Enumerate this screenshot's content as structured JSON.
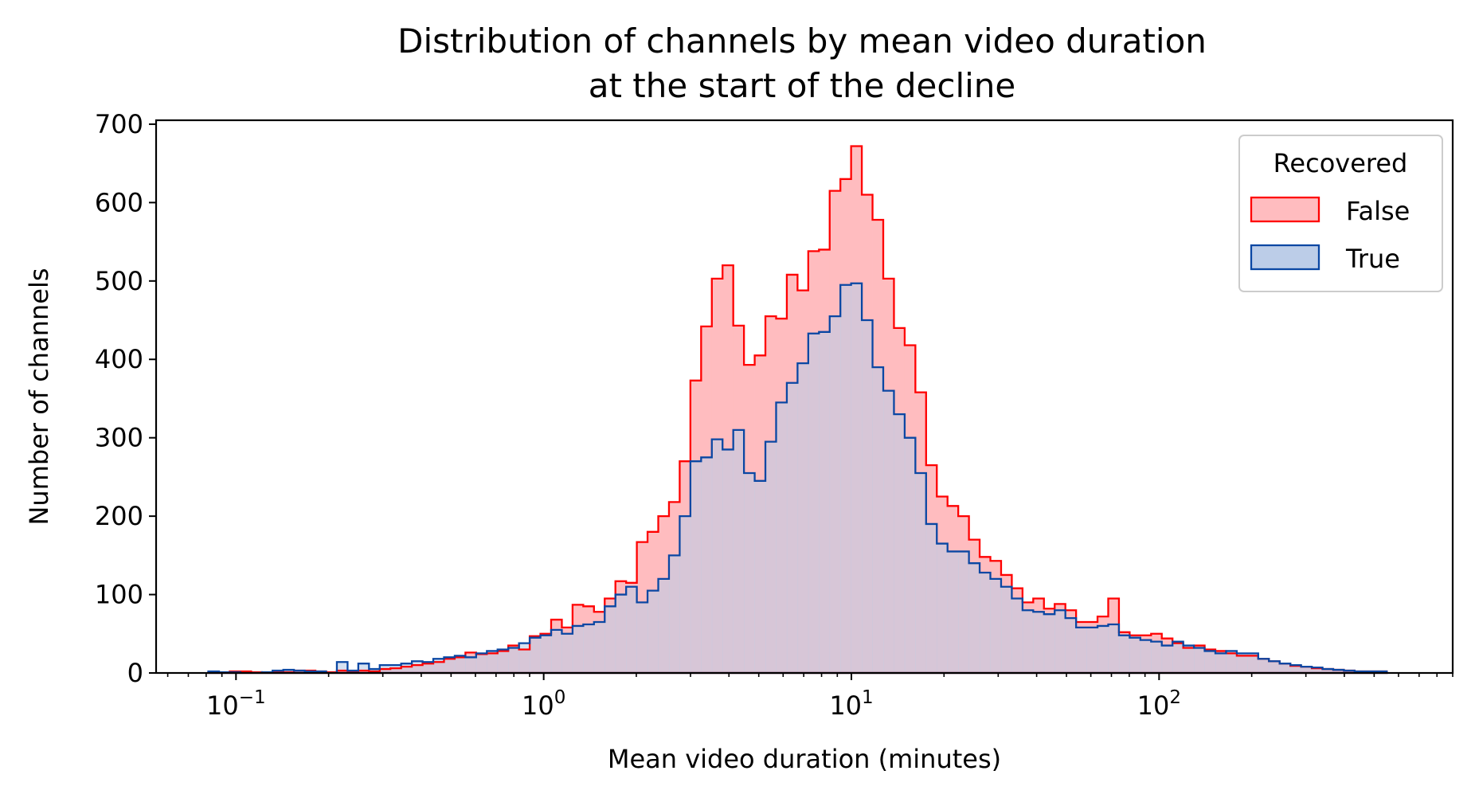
{
  "chart_data": {
    "type": "histogram",
    "title": [
      "Distribution of channels by mean video duration",
      "at the start of the decline"
    ],
    "xlabel": "Mean video duration (minutes)",
    "ylabel": "Number of channels",
    "x_scale": "log",
    "xlim": [
      0.055,
      900
    ],
    "ylim": [
      0,
      705
    ],
    "y_ticks": [
      0,
      100,
      200,
      300,
      400,
      500,
      600,
      700
    ],
    "y_tick_labels": [
      "0",
      "100",
      "200",
      "300",
      "400",
      "500",
      "600",
      "700"
    ],
    "x_ticks": [
      0.1,
      1,
      10,
      100
    ],
    "x_tick_labels": [
      {
        "base": "10",
        "exp": "−1"
      },
      {
        "base": "10",
        "exp": "0"
      },
      {
        "base": "10",
        "exp": "1"
      },
      {
        "base": "10",
        "exp": "2"
      }
    ],
    "grid": false,
    "legend": {
      "title": "Recovered",
      "placement": "top-right"
    },
    "bins": {
      "log10_start": -1.09,
      "log10_end": 2.74,
      "count": 110
    },
    "series": [
      {
        "name": "False",
        "stroke": "#ff0000",
        "fill": "#ffbcbf",
        "values": [
          1,
          0,
          2,
          2,
          1,
          0,
          2,
          1,
          3,
          3,
          2,
          1,
          3,
          2,
          3,
          2,
          5,
          6,
          8,
          10,
          12,
          14,
          18,
          20,
          26,
          24,
          25,
          28,
          35,
          30,
          47,
          50,
          68,
          58,
          87,
          85,
          78,
          95,
          117,
          115,
          167,
          180,
          200,
          218,
          270,
          373,
          442,
          503,
          520,
          443,
          393,
          405,
          455,
          452,
          508,
          488,
          538,
          540,
          615,
          630,
          672,
          610,
          578,
          503,
          440,
          418,
          358,
          265,
          225,
          213,
          200,
          170,
          148,
          143,
          125,
          108,
          90,
          95,
          82,
          88,
          80,
          65,
          65,
          72,
          95,
          52,
          48,
          48,
          50,
          44,
          38,
          32,
          35,
          30,
          28,
          25,
          22,
          22,
          18,
          15,
          12,
          9,
          8,
          6,
          5,
          4,
          3,
          2,
          2,
          2
        ]
      },
      {
        "name": "True",
        "stroke": "#0a47a3",
        "fill": "#bccde8",
        "values": [
          2,
          1,
          1,
          0,
          0,
          1,
          3,
          4,
          3,
          2,
          2,
          0,
          14,
          3,
          12,
          5,
          10,
          10,
          12,
          15,
          14,
          18,
          20,
          22,
          20,
          25,
          28,
          30,
          32,
          38,
          45,
          48,
          55,
          50,
          60,
          62,
          65,
          85,
          100,
          110,
          90,
          105,
          120,
          150,
          200,
          270,
          275,
          298,
          285,
          310,
          255,
          245,
          295,
          345,
          370,
          395,
          433,
          435,
          455,
          495,
          497,
          450,
          390,
          360,
          330,
          300,
          255,
          190,
          165,
          155,
          155,
          140,
          128,
          120,
          110,
          95,
          80,
          78,
          75,
          80,
          70,
          58,
          58,
          60,
          62,
          48,
          45,
          42,
          40,
          35,
          40,
          35,
          32,
          28,
          25,
          28,
          25,
          25,
          18,
          15,
          12,
          10,
          8,
          7,
          5,
          4,
          3,
          2,
          2,
          2
        ]
      }
    ]
  }
}
